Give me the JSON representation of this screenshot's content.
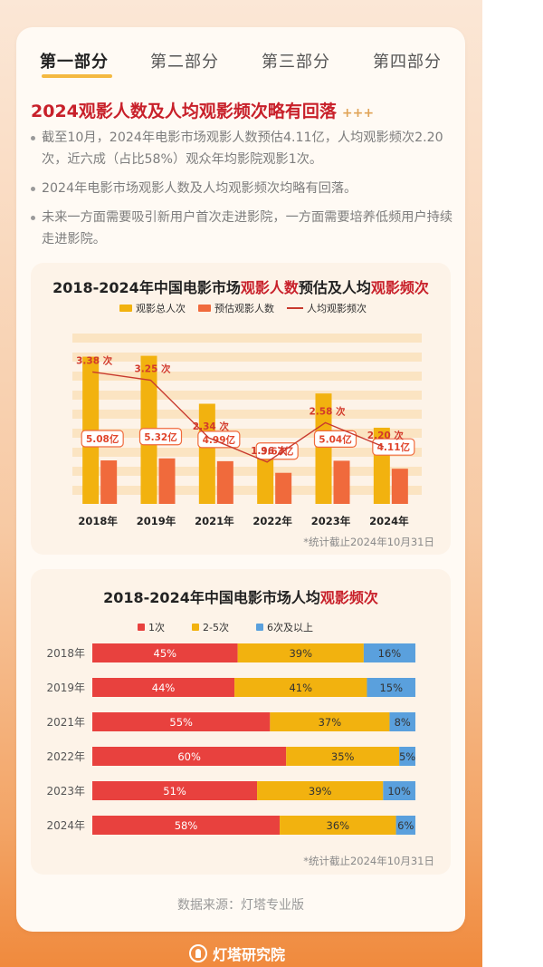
{
  "tabs": [
    "第一部分",
    "第二部分",
    "第三部分",
    "第四部分"
  ],
  "active_tab": 0,
  "headline": "2024观影人数及人均观影频次略有回落",
  "headline_decoration": "+++",
  "bullets": [
    "截至10月，2024年电影市场观影人数预估4.11亿，人均观影频次2.20次，近六成（占比58%）观众年均影院观影1次。",
    "2024年电影市场观影人数及人均观影频次均略有回落。",
    "未来一方面需要吸引新用户首次走进影院，一方面需要培养低频用户持续走进影院。"
  ],
  "panel1": {
    "title_prefix": "2018-2024年中国电影市场",
    "title_hl1": "观影人数",
    "title_mid": "预估及人均",
    "title_hl2": "观影频次",
    "legend": [
      "观影总人次",
      "预估观影人数",
      "人均观影频次"
    ],
    "note": "*统计截止2024年10月31日"
  },
  "panel2": {
    "title_prefix": "2018-2024年中国电影市场人均",
    "title_hl": "观影频次",
    "legend": [
      "1次",
      "2-5次",
      "6次及以上"
    ],
    "note": "*统计截止2024年10月31日"
  },
  "colors": {
    "gold": "#f2b20f",
    "orange": "#f06a3c",
    "red": "#e8413e",
    "blue": "#5aa0dd",
    "line": "#c83a2e"
  },
  "chart_data": [
    {
      "type": "bar",
      "title": "2018-2024年中国电影市场观影人数预估及人均观影频次",
      "categories": [
        "2018年",
        "2019年",
        "2021年",
        "2022年",
        "2023年",
        "2024年"
      ],
      "series": [
        {
          "name": "观影总人次",
          "values": [
            17.2,
            17.3,
            11.7,
            7.1,
            12.9,
            8.9
          ]
        },
        {
          "name": "预估观影人数",
          "values": [
            5.08,
            5.32,
            4.99,
            3.63,
            5.04,
            4.11
          ],
          "labels": [
            "5.08亿",
            "5.32亿",
            "4.99亿",
            "3.63亿",
            "5.04亿",
            "4.11亿"
          ]
        },
        {
          "name": "人均观影频次",
          "type": "line",
          "values": [
            3.38,
            3.25,
            2.34,
            1.96,
            2.58,
            2.2
          ],
          "labels": [
            "3.38 次",
            "3.25 次",
            "2.34 次",
            "1.96 次",
            "2.58 次",
            "2.20 次"
          ]
        }
      ],
      "note": "*统计截止2024年10月31日"
    },
    {
      "type": "bar",
      "stacked": true,
      "orientation": "horizontal",
      "title": "2018-2024年中国电影市场人均观影频次",
      "categories": [
        "2018年",
        "2019年",
        "2021年",
        "2022年",
        "2023年",
        "2024年"
      ],
      "series": [
        {
          "name": "1次",
          "values": [
            45,
            44,
            55,
            60,
            51,
            58
          ]
        },
        {
          "name": "2-5次",
          "values": [
            39,
            41,
            37,
            35,
            39,
            36
          ]
        },
        {
          "name": "6次及以上",
          "values": [
            16,
            15,
            8,
            5,
            10,
            6
          ]
        }
      ],
      "unit": "%",
      "note": "*统计截止2024年10月31日"
    }
  ],
  "footer": "数据来源：灯塔专业版",
  "brand": "灯塔研究院"
}
